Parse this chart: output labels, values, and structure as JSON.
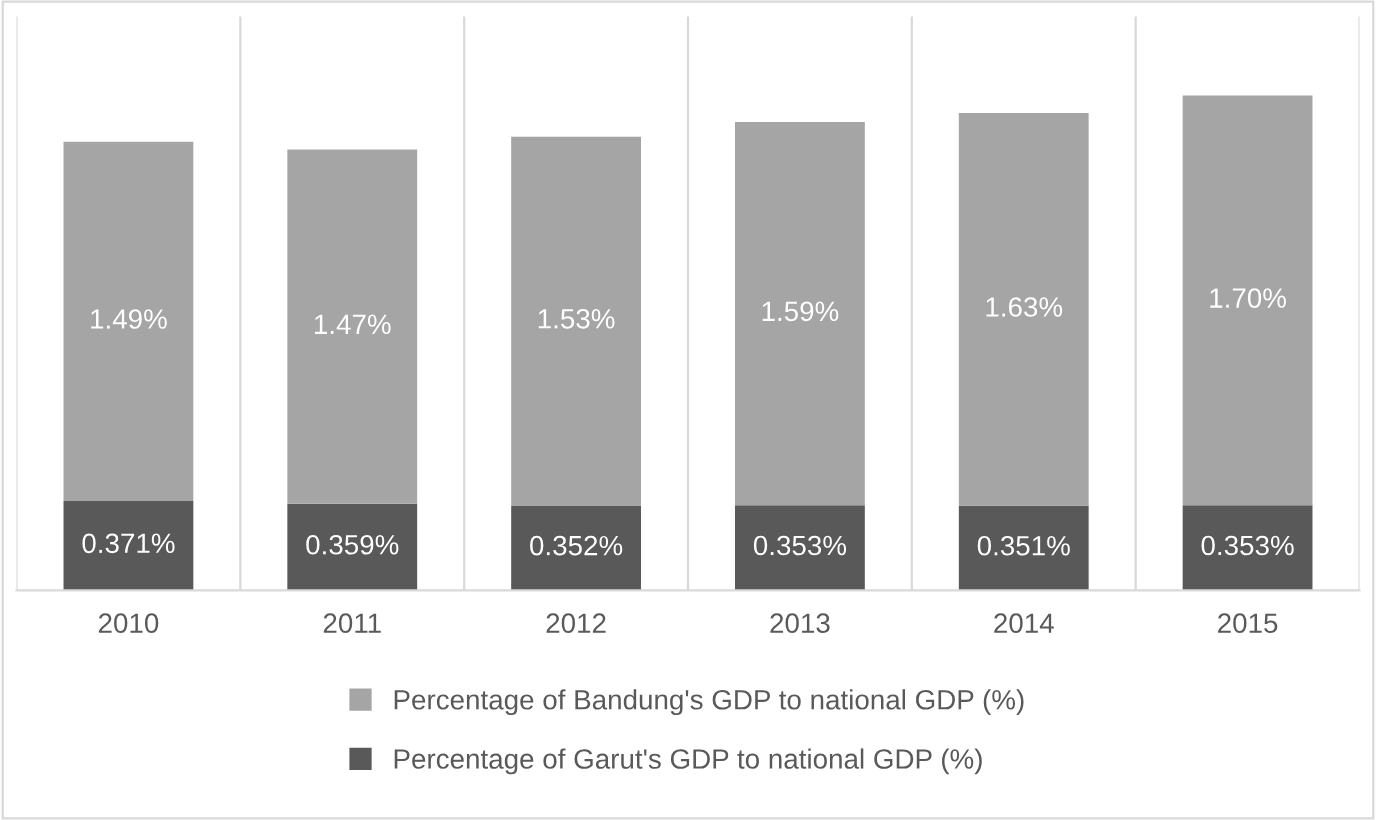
{
  "chart_data": {
    "type": "bar",
    "stacked": true,
    "categories": [
      "2010",
      "2011",
      "2012",
      "2013",
      "2014",
      "2015"
    ],
    "series": [
      {
        "name": "Percentage of Garut's GDP to national GDP (%)",
        "color": "#595959",
        "values": [
          0.371,
          0.359,
          0.352,
          0.353,
          0.351,
          0.353
        ],
        "value_labels": [
          "0.371%",
          "0.359%",
          "0.352%",
          "0.353%",
          "0.351%",
          "0.353%"
        ]
      },
      {
        "name": "Percentage of Bandung's GDP to national GDP (%)",
        "color": "#a5a5a5",
        "values": [
          1.49,
          1.47,
          1.53,
          1.59,
          1.63,
          1.7
        ],
        "value_labels": [
          "1.49%",
          "1.47%",
          "1.53%",
          "1.59%",
          "1.63%",
          "1.70%"
        ]
      }
    ],
    "grid": "x",
    "legend": "bottom"
  }
}
